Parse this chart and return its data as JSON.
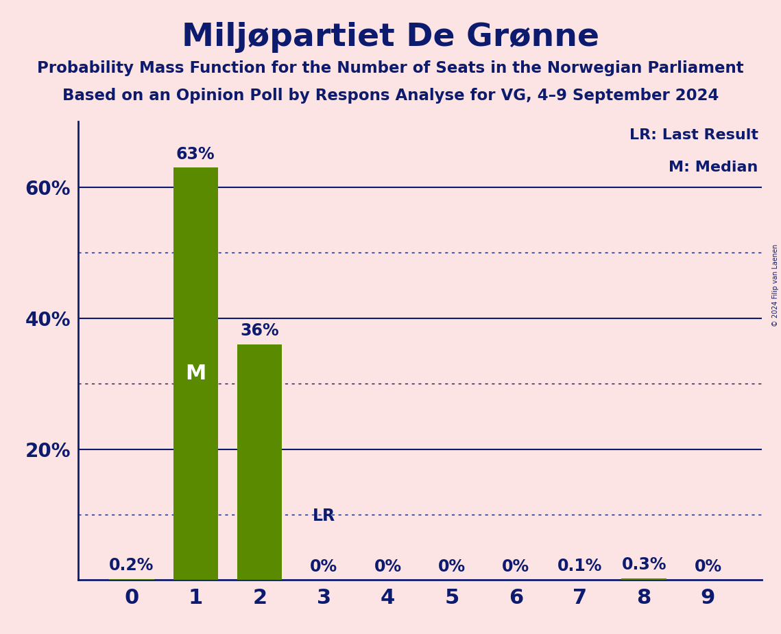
{
  "title": "Miljøpartiet De Grønne",
  "subtitle1": "Probability Mass Function for the Number of Seats in the Norwegian Parliament",
  "subtitle2": "Based on an Opinion Poll by Respons Analyse for VG, 4–9 September 2024",
  "copyright": "© 2024 Filip van Laenen",
  "categories": [
    0,
    1,
    2,
    3,
    4,
    5,
    6,
    7,
    8,
    9
  ],
  "values": [
    0.002,
    0.63,
    0.36,
    0.0,
    0.0,
    0.0,
    0.0,
    0.001,
    0.003,
    0.0
  ],
  "bar_color": "#5a8a00",
  "background_color": "#fce4e4",
  "text_color": "#0d1b6e",
  "yticks": [
    0.2,
    0.4,
    0.6
  ],
  "ytick_labels": [
    "20%",
    "40%",
    "60%"
  ],
  "ylim": [
    0,
    0.7
  ],
  "median_bar": 1,
  "last_result_bar": 3,
  "legend_lr": "LR: Last Result",
  "legend_m": "M: Median",
  "bar_labels": [
    "0.2%",
    "63%",
    "36%",
    "0%",
    "0%",
    "0%",
    "0%",
    "0.1%",
    "0.3%",
    "0%"
  ],
  "bar_label_show_above": [
    true,
    true,
    true,
    true,
    true,
    true,
    true,
    true,
    true,
    true
  ],
  "solid_grid": [
    0.2,
    0.4,
    0.6
  ],
  "dotted_grid": [
    0.1,
    0.3,
    0.5
  ],
  "figsize": [
    11.39,
    9.24
  ],
  "dpi": 100
}
